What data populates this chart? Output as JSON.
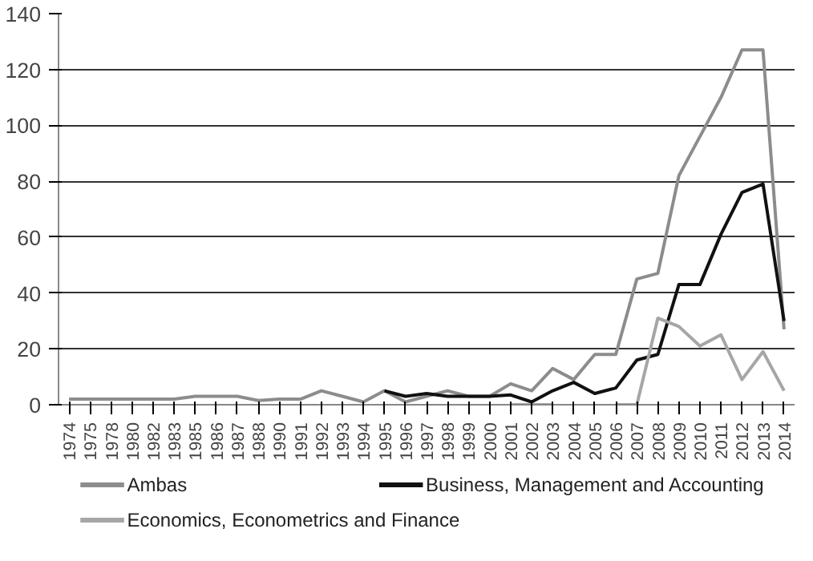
{
  "chart_data": {
    "type": "line",
    "categories": [
      "1974",
      "1975",
      "1978",
      "1980",
      "1982",
      "1983",
      "1985",
      "1986",
      "1987",
      "1988",
      "1990",
      "1991",
      "1992",
      "1993",
      "1994",
      "1995",
      "1996",
      "1997",
      "1998",
      "1999",
      "2000",
      "2001",
      "2002",
      "2003",
      "2004",
      "2005",
      "2006",
      "2007",
      "2008",
      "2009",
      "2010",
      "2011",
      "2012",
      "2013",
      "2014"
    ],
    "series": [
      {
        "name": "Ambas",
        "color": "#8c8c8c",
        "values": [
          2,
          2,
          2,
          2,
          2,
          2,
          3,
          3,
          3,
          1.5,
          2,
          2,
          5,
          3,
          1,
          5,
          1,
          3,
          5,
          3,
          3,
          7.5,
          5,
          13,
          9,
          18,
          18,
          45,
          47,
          82,
          96,
          110,
          127,
          127,
          27
        ]
      },
      {
        "name": "Business, Management and Accounting",
        "color": "#111111",
        "values": [
          null,
          null,
          null,
          null,
          null,
          null,
          null,
          null,
          null,
          null,
          null,
          null,
          null,
          null,
          null,
          5,
          3,
          4,
          3,
          3,
          3,
          3.5,
          1,
          5,
          8,
          4,
          6,
          16,
          18,
          43,
          43,
          61,
          76,
          79,
          30
        ]
      },
      {
        "name": "Economics, Econometrics and Finance",
        "color": "#a6a6a6",
        "values": [
          null,
          null,
          null,
          null,
          null,
          null,
          null,
          null,
          null,
          null,
          null,
          null,
          null,
          null,
          null,
          null,
          null,
          null,
          null,
          null,
          null,
          0,
          0,
          0,
          null,
          null,
          0,
          0,
          31,
          28,
          21,
          25,
          9,
          19,
          5
        ]
      }
    ],
    "ylim": [
      0,
      140
    ],
    "yticks": [
      0,
      20,
      40,
      60,
      80,
      100,
      120,
      140
    ],
    "grid": "y",
    "legend": "bottom"
  }
}
